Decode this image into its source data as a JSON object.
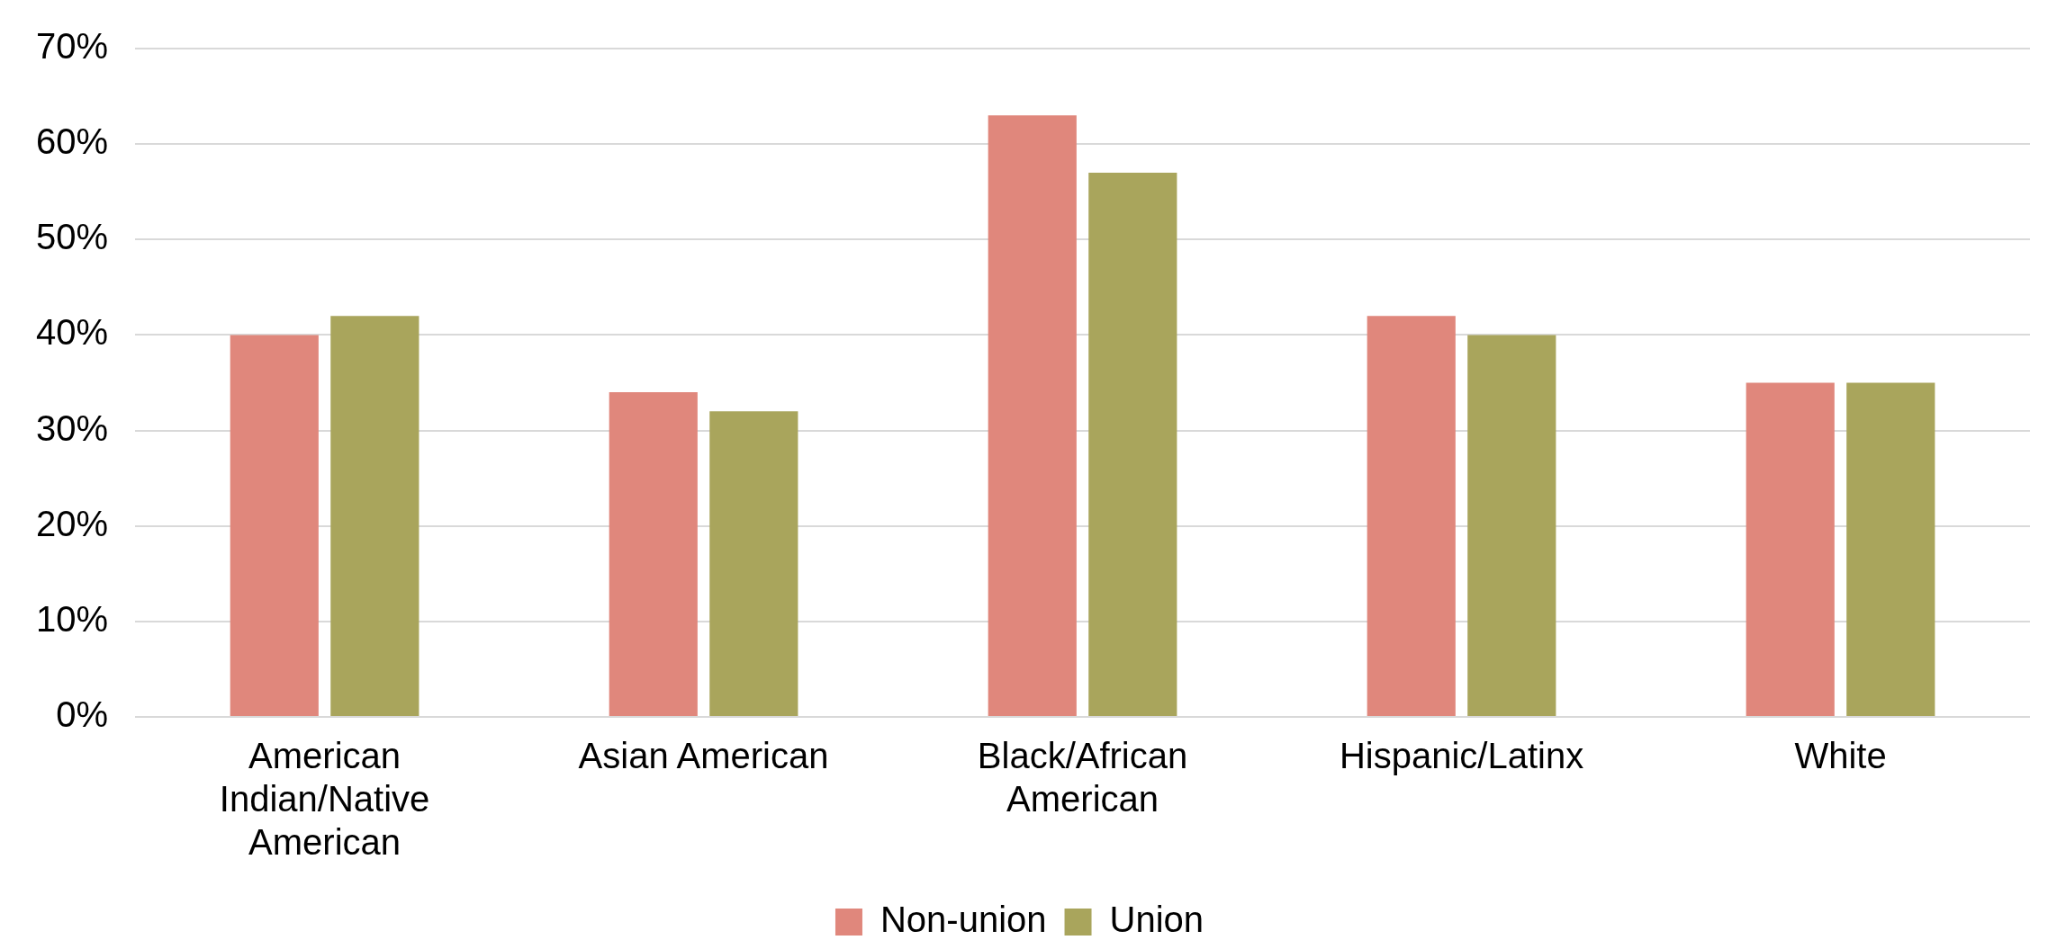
{
  "chart_data": {
    "type": "bar",
    "categories": [
      "American Indian/Native American",
      "Asian American",
      "Black/African American",
      "Hispanic/Latinx",
      "White"
    ],
    "series": [
      {
        "name": "Non-union",
        "color": "#e0877c",
        "values": [
          40,
          34,
          63,
          42,
          35
        ]
      },
      {
        "name": "Union",
        "color": "#a9a55c",
        "values": [
          42,
          32,
          57,
          40,
          35
        ]
      }
    ],
    "ylim": [
      0,
      70
    ],
    "yticks": [
      {
        "value": 0,
        "label": "0%"
      },
      {
        "value": 10,
        "label": "10%"
      },
      {
        "value": 20,
        "label": "20%"
      },
      {
        "value": 30,
        "label": "30%"
      },
      {
        "value": 40,
        "label": "40%"
      },
      {
        "value": 50,
        "label": "50%"
      },
      {
        "value": 60,
        "label": "60%"
      },
      {
        "value": 70,
        "label": "70%"
      }
    ],
    "grid": "y",
    "legend": "bottom"
  }
}
